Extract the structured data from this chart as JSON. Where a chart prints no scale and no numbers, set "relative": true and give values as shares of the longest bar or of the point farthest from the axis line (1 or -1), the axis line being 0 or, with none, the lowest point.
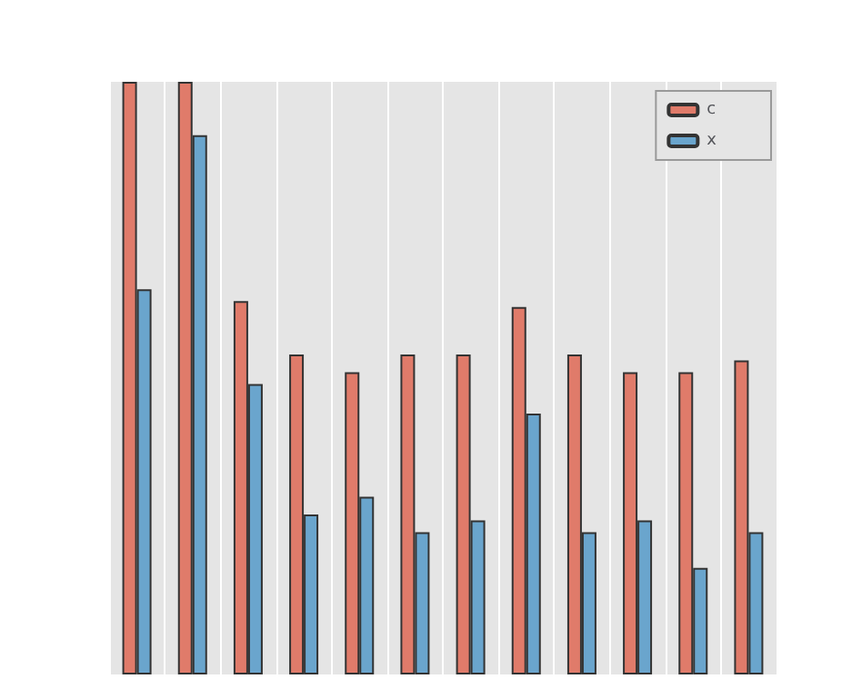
{
  "chart_data": {
    "type": "bar",
    "relative": true,
    "categories": [
      null,
      null,
      null,
      null,
      null,
      null,
      null,
      null,
      null,
      null,
      null,
      null
    ],
    "series": [
      {
        "name": "c",
        "color": "#e07b6a",
        "values": [
          1,
          1,
          0.63,
          0.54,
          0.51,
          0.54,
          0.54,
          0.62,
          0.54,
          0.51,
          0.51,
          0.53
        ]
      },
      {
        "name": "x",
        "color": "#6aa5cd",
        "values": [
          0.65,
          0.91,
          0.49,
          0.27,
          0.3,
          0.24,
          0.26,
          0.44,
          0.24,
          0.26,
          0.18,
          0.24
        ]
      }
    ],
    "grid": "x",
    "legend": "top right"
  }
}
